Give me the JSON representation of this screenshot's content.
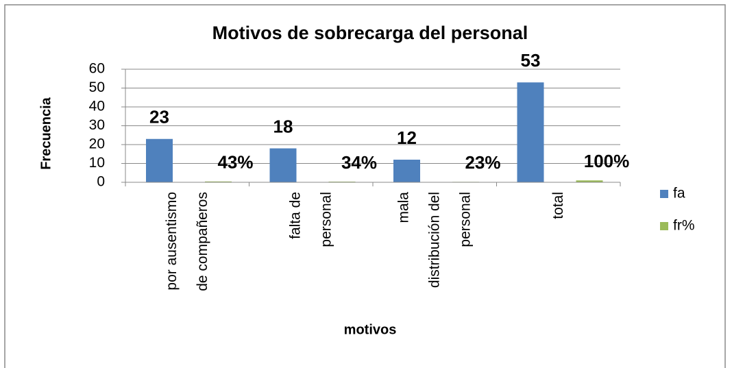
{
  "chart_data": {
    "type": "bar",
    "title": "Motivos de sobrecarga del personal",
    "y_label": "Frecuencia",
    "x_label": "motivos",
    "categories": [
      "por ausentismo de compañeros",
      "falta de personal",
      "mala distribución del personal",
      "total"
    ],
    "series": [
      {
        "name": "fa",
        "color": "#4f81bd",
        "values": [
          23,
          18,
          12,
          53
        ]
      },
      {
        "name": "fr%",
        "color": "#9bbb59",
        "values": [
          0.43,
          0.34,
          0.23,
          1
        ],
        "value_labels": [
          "43%",
          "34%",
          "23%",
          "100%"
        ]
      }
    ],
    "ylim": [
      0,
      60
    ],
    "yticks": [
      0,
      10,
      20,
      30,
      40,
      50,
      60
    ],
    "grid": true,
    "legend": "right"
  }
}
